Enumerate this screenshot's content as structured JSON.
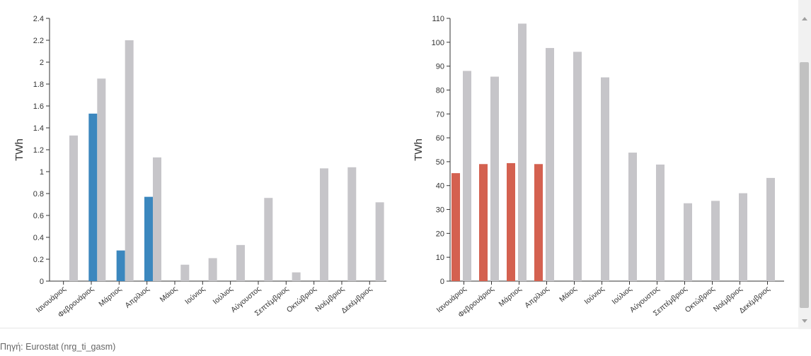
{
  "source_text": "Πηγή: Eurostat (nrg_ti_gasm)",
  "colors": {
    "left_highlight": "#3b87be",
    "right_highlight": "#d46150",
    "gray": "#c6c5c9",
    "axis": "#333333"
  },
  "chart_data": [
    {
      "type": "bar",
      "ylabel": "TWh",
      "xlabel": "",
      "ylim": [
        0,
        2.4
      ],
      "yticks": [
        0,
        0.2,
        0.4,
        0.6,
        0.8,
        1,
        1.2,
        1.4,
        1.6,
        1.8,
        2,
        2.2,
        2.4
      ],
      "categories": [
        "Ιανουάριος",
        "Φεβρουάριος",
        "Μάρτιος",
        "Απρίλιος",
        "Μάιος",
        "Ιούνιος",
        "Ιούλιος",
        "Αύγουστος",
        "Σεπτέμβριος",
        "Οκτώβριος",
        "Νοέμβριος",
        "Δεκέμβριος"
      ],
      "series": [
        {
          "values": [
            null,
            1.53,
            0.28,
            0.77,
            null,
            null,
            null,
            null,
            null,
            null,
            null,
            null
          ],
          "color": "#3b87be"
        },
        {
          "values": [
            1.33,
            1.85,
            2.2,
            1.13,
            0.15,
            0.21,
            0.33,
            0.76,
            0.08,
            1.03,
            1.04,
            0.72
          ],
          "color": "#c6c5c9"
        }
      ]
    },
    {
      "type": "bar",
      "ylabel": "TWh",
      "xlabel": "",
      "ylim": [
        0,
        110
      ],
      "yticks": [
        0,
        10,
        20,
        30,
        40,
        50,
        60,
        70,
        80,
        90,
        100,
        110
      ],
      "categories": [
        "Ιανουάριος",
        "Φεβρουάριος",
        "Μάρτιος",
        "Απρίλιος",
        "Μάιος",
        "Ιούνιος",
        "Ιούλιος",
        "Αύγουστος",
        "Σεπτέμβριος",
        "Οκτώβριος",
        "Νοέμβριος",
        "Δεκέμβριος"
      ],
      "series": [
        {
          "values": [
            45.2,
            49.0,
            49.4,
            49.0,
            null,
            null,
            null,
            null,
            null,
            null,
            null,
            null
          ],
          "color": "#d46150"
        },
        {
          "values": [
            88.0,
            85.6,
            107.8,
            97.6,
            96.0,
            85.3,
            53.8,
            48.8,
            32.6,
            33.6,
            36.8,
            43.2
          ],
          "color": "#c6c5c9"
        }
      ]
    }
  ]
}
